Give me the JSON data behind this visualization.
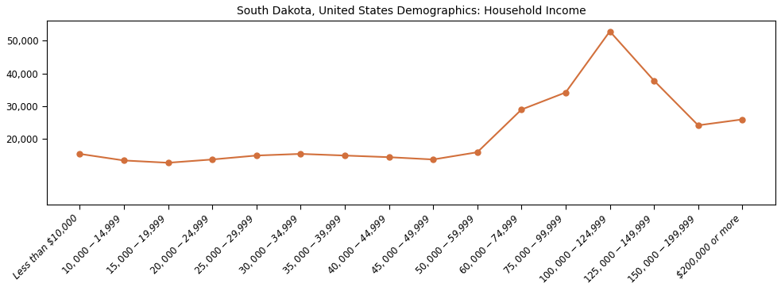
{
  "title": "South Dakota, United States Demographics: Household Income",
  "categories": [
    "Less than $10,000",
    "$10,000 - $14,999",
    "$15,000 - $19,999",
    "$20,000 - $24,999",
    "$25,000 - $29,999",
    "$30,000 - $34,999",
    "$35,000 - $39,999",
    "$40,000 - $44,999",
    "$45,000 - $49,999",
    "$50,000 - $59,999",
    "$60,000 - $74,999",
    "$75,000 - $99,999",
    "$100,000 - $124,999",
    "$125,000 - $149,999",
    "$150,000 - $199,999",
    "$200,000 or more"
  ],
  "values": [
    15500,
    13500,
    12800,
    13800,
    15000,
    15500,
    15000,
    14500,
    13800,
    16000,
    29000,
    34200,
    52800,
    37800,
    24200,
    26000
  ],
  "line_color": "#d2703c",
  "marker": "o",
  "marker_size": 5,
  "ylim": [
    0,
    56000
  ],
  "ytick_values": [
    20000,
    30000,
    40000,
    50000
  ],
  "background_color": "#ffffff",
  "title_fontsize": 10,
  "tick_fontsize": 8.5
}
